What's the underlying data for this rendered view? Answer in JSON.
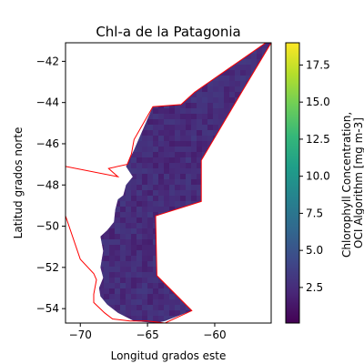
{
  "chart_data": {
    "type": "heatmap",
    "title": "Chl-a de la Patagonia",
    "xlabel": "Longitud grados este",
    "ylabel": "Latitud grados norte",
    "colorbar_label": "Chlorophyll Concentration, OCI Algorithm [mg m-3]",
    "xlim": [
      -71.1,
      -55.8
    ],
    "ylim": [
      -54.7,
      -41.1
    ],
    "xticks": [
      -70,
      -65,
      -60
    ],
    "xtick_labels": [
      "−70",
      "−65",
      "−60"
    ],
    "yticks": [
      -42,
      -44,
      -46,
      -48,
      -50,
      -52,
      -54
    ],
    "ytick_labels": [
      "−42",
      "−44",
      "−46",
      "−48",
      "−50",
      "−52",
      "−54"
    ],
    "colorbar_range": [
      0.1,
      19.0
    ],
    "colorbar_ticks": [
      2.5,
      5.0,
      7.5,
      10.0,
      12.5,
      15.0,
      17.5
    ],
    "colorbar_tick_labels": [
      "2.5",
      "5.0",
      "7.5",
      "10.0",
      "12.5",
      "15.0",
      "17.5"
    ],
    "colormap": "viridis",
    "colormap_colors": [
      "#440154",
      "#482878",
      "#3e4989",
      "#31688e",
      "#26828e",
      "#1f9e89",
      "#35b779",
      "#6ece58",
      "#b5de2b",
      "#fde725"
    ],
    "data_region_typical_value_range": [
      1.0,
      4.0
    ],
    "boundary_color": "#ff0000",
    "boundary_polygon": [
      [
        -56.2,
        -41.1
      ],
      [
        -61.5,
        -43.5
      ],
      [
        -62.5,
        -44.1
      ],
      [
        -64.6,
        -44.2
      ],
      [
        -66.0,
        -45.8
      ],
      [
        -66.2,
        -46.5
      ],
      [
        -66.5,
        -47.0
      ],
      [
        -67.9,
        -47.2
      ],
      [
        -67.2,
        -47.6
      ],
      [
        -71.1,
        -47.1
      ],
      [
        -71.1,
        -49.5
      ],
      [
        -70.0,
        -51.6
      ],
      [
        -69.0,
        -52.3
      ],
      [
        -68.8,
        -52.6
      ],
      [
        -69.0,
        -53.3
      ],
      [
        -69.0,
        -53.7
      ],
      [
        -68.2,
        -54.2
      ],
      [
        -67.6,
        -54.5
      ],
      [
        -66.3,
        -54.6
      ],
      [
        -65.0,
        -54.6
      ],
      [
        -63.7,
        -54.7
      ],
      [
        -61.7,
        -54.1
      ],
      [
        -64.3,
        -52.4
      ],
      [
        -64.4,
        -49.5
      ],
      [
        -61.0,
        -48.8
      ],
      [
        -61.0,
        -46.8
      ],
      [
        -58.0,
        -43.5
      ],
      [
        -55.8,
        -41.1
      ]
    ],
    "data_region_polygon": [
      [
        -56.2,
        -41.1
      ],
      [
        -55.8,
        -41.1
      ],
      [
        -58.0,
        -43.5
      ],
      [
        -61.0,
        -46.8
      ],
      [
        -61.0,
        -48.8
      ],
      [
        -64.4,
        -49.5
      ],
      [
        -64.3,
        -52.4
      ],
      [
        -61.7,
        -54.1
      ],
      [
        -63.7,
        -54.6
      ],
      [
        -64.4,
        -54.7
      ],
      [
        -66.0,
        -54.6
      ],
      [
        -67.2,
        -54.2
      ],
      [
        -68.0,
        -53.8
      ],
      [
        -68.5,
        -53.4
      ],
      [
        -68.6,
        -53.0
      ],
      [
        -68.3,
        -52.5
      ],
      [
        -68.5,
        -52.0
      ],
      [
        -68.3,
        -51.2
      ],
      [
        -68.5,
        -50.5
      ],
      [
        -68.0,
        -50.2
      ],
      [
        -67.5,
        -49.8
      ],
      [
        -67.4,
        -49.2
      ],
      [
        -67.2,
        -48.7
      ],
      [
        -66.8,
        -48.5
      ],
      [
        -66.6,
        -48.0
      ],
      [
        -66.1,
        -47.6
      ],
      [
        -66.6,
        -47.1
      ],
      [
        -66.0,
        -46.3
      ],
      [
        -64.6,
        -44.2
      ],
      [
        -62.5,
        -44.1
      ],
      [
        -61.5,
        -43.5
      ]
    ]
  }
}
